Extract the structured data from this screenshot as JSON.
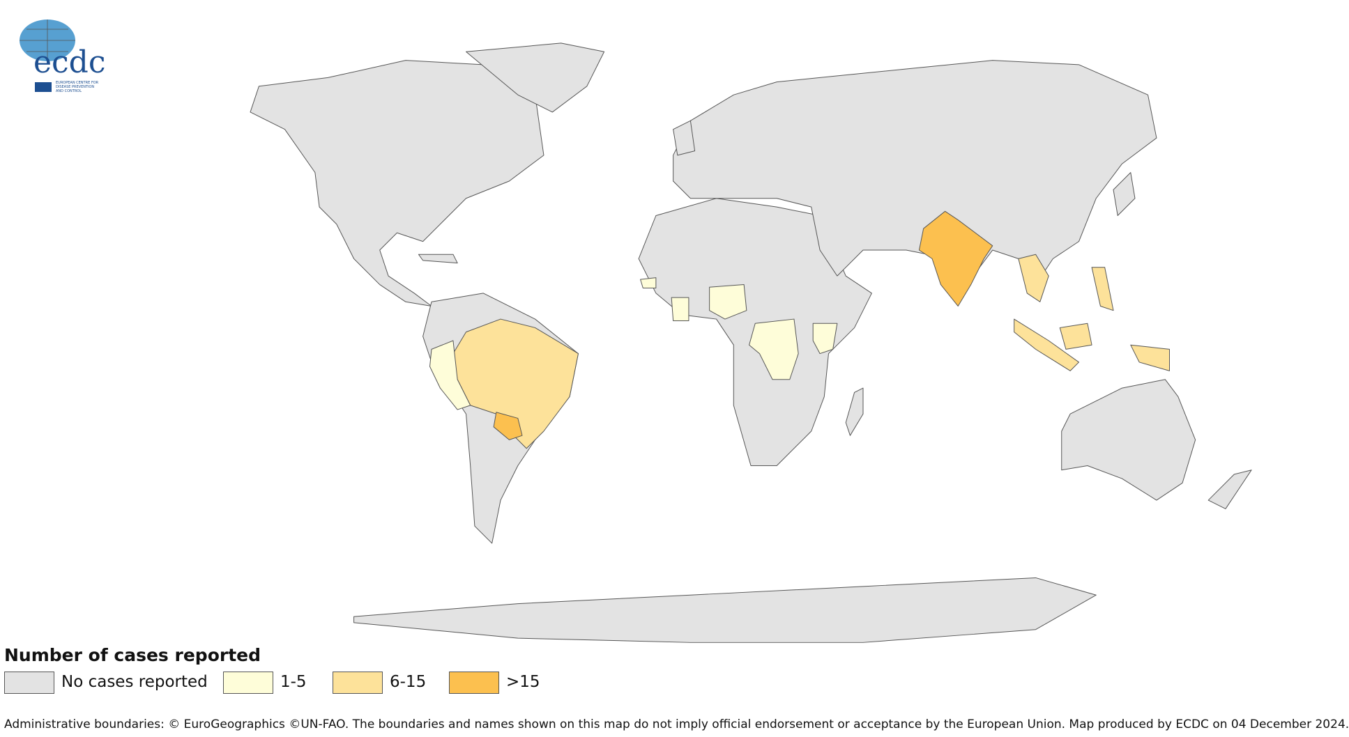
{
  "logo": {
    "name": "ecdc",
    "subtitle": [
      "EUROPEAN CENTRE FOR",
      "DISEASE PREVENTION",
      "AND CONTROL"
    ]
  },
  "legend": {
    "title": "Number of cases reported",
    "items": [
      {
        "label": "No cases reported",
        "color": "#e3e3e3"
      },
      {
        "label": "1-5",
        "color": "#fefdd9"
      },
      {
        "label": "6-15",
        "color": "#fde29a"
      },
      {
        "label": ">15",
        "color": "#fcc04f"
      }
    ]
  },
  "footer": "Administrative boundaries: © EuroGeographics ©UN-FAO. The boundaries and names shown on this map do not imply official endorsement or acceptance by the European Union. Map produced by ECDC on 04 December 2024."
}
